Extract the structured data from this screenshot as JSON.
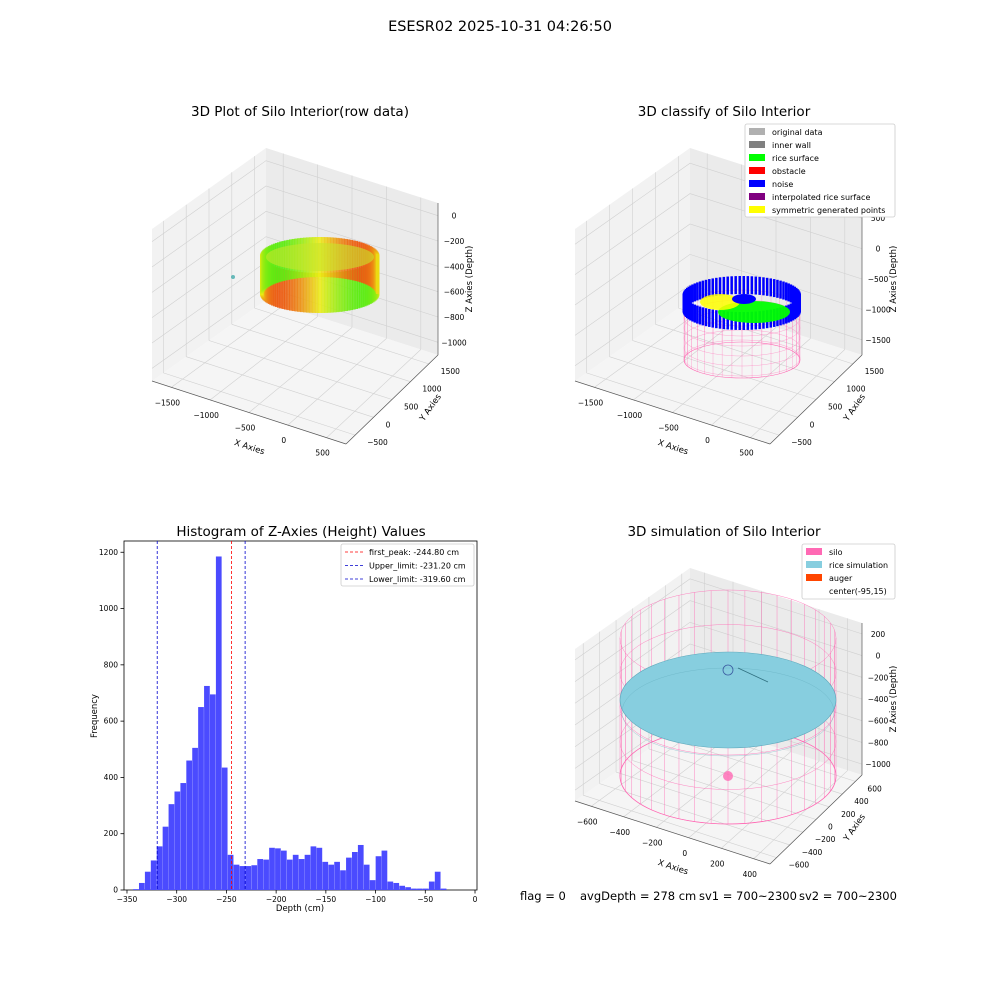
{
  "figure_title": "ESESR02 2025-10-31 04:26:50",
  "footer": {
    "flag": "flag = 0",
    "avgDepth": "avgDepth = 278 cm",
    "sv1": "sv1 = 700~2300",
    "sv2": "sv2 = 700~2300"
  },
  "colors": {
    "hist_bar": "#4b4bff",
    "peak_line": "#ff0000",
    "limit_line": "#0000cc",
    "silo": "#ff69b4",
    "rice_simulation": "#87cedf",
    "auger": "#ff4500",
    "rice_surface": "#00ff00",
    "noise": "#0000ff",
    "inner_wall": "#808080",
    "original_data": "#b0b0b0",
    "obstacle": "#ff0000",
    "interpolated_rice_surface": "#800080",
    "symmetric_generated_points": "#ffff00"
  },
  "chart_data": [
    {
      "type": "scatter",
      "title": "3D Plot of Silo Interior(row data)",
      "xlabel": "X Axies",
      "ylabel": "Y Axies",
      "zlabel": "Z Axies (Depth)",
      "xticks": [
        "−1500",
        "−1000",
        "−500",
        "0",
        "500"
      ],
      "yticks": [
        "−500",
        "0",
        "500",
        "1000",
        "1500"
      ],
      "zticks": [
        "0",
        "−200",
        "−400",
        "−600",
        "−800",
        "−1000"
      ]
    },
    {
      "type": "scatter",
      "title": "3D classify of Silo Interior",
      "xlabel": "X Axies",
      "ylabel": "Y Axies",
      "zlabel": "Z Axies (Depth)",
      "xticks": [
        "−1500",
        "−1000",
        "−500",
        "0",
        "500"
      ],
      "yticks": [
        "−500",
        "0",
        "500",
        "1000",
        "1500"
      ],
      "zticks": [
        "500",
        "0",
        "−500",
        "−1000",
        "−1500"
      ],
      "legend": [
        {
          "name": "original data",
          "color": "#b0b0b0"
        },
        {
          "name": "inner wall",
          "color": "#808080"
        },
        {
          "name": "rice surface",
          "color": "#00ff00"
        },
        {
          "name": "obstacle",
          "color": "#ff0000"
        },
        {
          "name": "noise",
          "color": "#0000ff"
        },
        {
          "name": "interpolated rice surface",
          "color": "#800080"
        },
        {
          "name": "symmetric generated points",
          "color": "#ffff00"
        }
      ]
    },
    {
      "type": "bar",
      "title": "Histogram of Z-Axies (Height) Values",
      "xlabel": "Depth (cm)",
      "ylabel": "Frequency",
      "xlim": [
        -353,
        2
      ],
      "ylim": [
        0,
        1240
      ],
      "xticks": [
        -350,
        -300,
        -250,
        -200,
        -150,
        -100,
        -50,
        0
      ],
      "xtick_labels": [
        "−350",
        "−300",
        "−250",
        "−200",
        "−150",
        "−100",
        "−50",
        "0"
      ],
      "yticks": [
        0,
        200,
        400,
        600,
        800,
        1000,
        1200
      ],
      "bin_width": 5.95,
      "bins": [
        {
          "x": -340.9,
          "y": 3
        },
        {
          "x": -334.95,
          "y": 25
        },
        {
          "x": -329.0,
          "y": 65
        },
        {
          "x": -323.05,
          "y": 105
        },
        {
          "x": -317.1,
          "y": 155
        },
        {
          "x": -311.15,
          "y": 225
        },
        {
          "x": -305.2,
          "y": 305
        },
        {
          "x": -299.25,
          "y": 350
        },
        {
          "x": -293.3,
          "y": 380
        },
        {
          "x": -287.35,
          "y": 460
        },
        {
          "x": -281.4,
          "y": 505
        },
        {
          "x": -275.45,
          "y": 650
        },
        {
          "x": -269.5,
          "y": 725
        },
        {
          "x": -263.55,
          "y": 695
        },
        {
          "x": -257.6,
          "y": 1185
        },
        {
          "x": -251.65,
          "y": 435
        },
        {
          "x": -245.7,
          "y": 125
        },
        {
          "x": -239.75,
          "y": 90
        },
        {
          "x": -233.8,
          "y": 85
        },
        {
          "x": -227.85,
          "y": 85
        },
        {
          "x": -221.9,
          "y": 88
        },
        {
          "x": -215.95,
          "y": 110
        },
        {
          "x": -210.0,
          "y": 108
        },
        {
          "x": -204.05,
          "y": 150
        },
        {
          "x": -198.1,
          "y": 148
        },
        {
          "x": -192.15,
          "y": 140
        },
        {
          "x": -186.2,
          "y": 108
        },
        {
          "x": -180.25,
          "y": 125
        },
        {
          "x": -174.3,
          "y": 110
        },
        {
          "x": -168.35,
          "y": 125
        },
        {
          "x": -162.4,
          "y": 155
        },
        {
          "x": -156.45,
          "y": 150
        },
        {
          "x": -150.5,
          "y": 100
        },
        {
          "x": -144.55,
          "y": 90
        },
        {
          "x": -138.6,
          "y": 100
        },
        {
          "x": -132.65,
          "y": 70
        },
        {
          "x": -126.7,
          "y": 115
        },
        {
          "x": -120.75,
          "y": 135
        },
        {
          "x": -114.8,
          "y": 160
        },
        {
          "x": -108.85,
          "y": 90
        },
        {
          "x": -102.9,
          "y": 35
        },
        {
          "x": -96.95,
          "y": 120
        },
        {
          "x": -91.0,
          "y": 140
        },
        {
          "x": -85.05,
          "y": 30
        },
        {
          "x": -79.1,
          "y": 25
        },
        {
          "x": -73.15,
          "y": 15
        },
        {
          "x": -67.2,
          "y": 10
        },
        {
          "x": -61.25,
          "y": 5
        },
        {
          "x": -55.3,
          "y": 5
        },
        {
          "x": -49.35,
          "y": 5
        },
        {
          "x": -43.4,
          "y": 30
        },
        {
          "x": -37.45,
          "y": 65
        },
        {
          "x": -31.5,
          "y": 5
        }
      ],
      "lines": [
        {
          "name": "first_peak: -244.80 cm",
          "x": -244.8,
          "color": "#ff0000"
        },
        {
          "name": "Upper_limit: -231.20 cm",
          "x": -231.2,
          "color": "#0000cc"
        },
        {
          "name": "Lower_limit: -319.60 cm",
          "x": -319.6,
          "color": "#0000cc"
        }
      ],
      "legend_position": "upper right"
    },
    {
      "type": "scatter",
      "title": "3D simulation of Silo Interior",
      "xlabel": "X Axies",
      "ylabel": "Y Axies",
      "zlabel": "Z Axies (Depth)",
      "xticks": [
        "−600",
        "−400",
        "−200",
        "0",
        "200",
        "400"
      ],
      "yticks": [
        "−600",
        "−400",
        "−200",
        "0",
        "200",
        "400",
        "600"
      ],
      "zticks": [
        "200",
        "0",
        "−200",
        "−400",
        "−600",
        "−800",
        "−1000"
      ],
      "legend": [
        {
          "name": "silo",
          "color": "#ff69b4"
        },
        {
          "name": "rice simulation",
          "color": "#87cedf"
        },
        {
          "name": "auger",
          "color": "#ff4500"
        },
        {
          "name": "center(-95,15)",
          "color": "#ffffff"
        }
      ]
    }
  ]
}
